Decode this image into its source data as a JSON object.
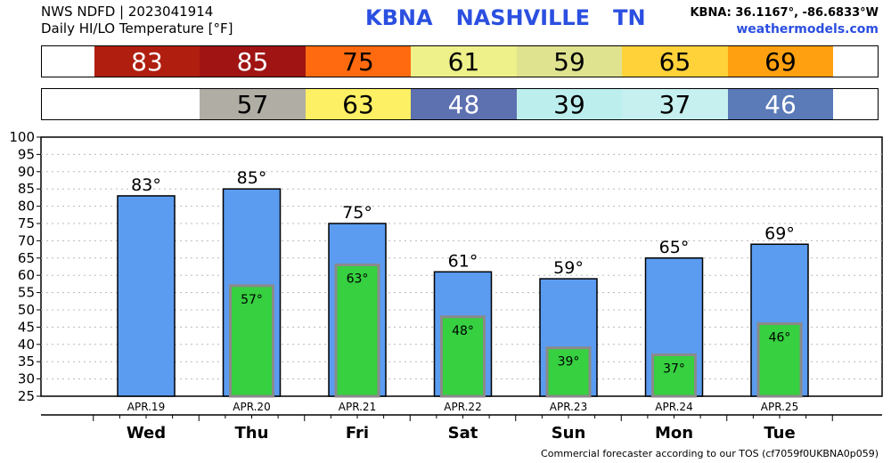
{
  "header": {
    "source": "NWS NDFD | 2023041914",
    "product": "Daily HI/LO Temperature [°F]",
    "station": "KBNA",
    "city": "NASHVILLE",
    "state": "TN",
    "coords": "KBNA: 36.1167°, -86.6833°W",
    "site": "weathermodels.com"
  },
  "strips": {
    "hi": [
      {
        "value": "83",
        "color": "#b01e10",
        "text_color": "#ffffff"
      },
      {
        "value": "85",
        "color": "#a01414",
        "text_color": "#ffffff"
      },
      {
        "value": "75",
        "color": "#ff6a10",
        "text_color": "#000000"
      },
      {
        "value": "61",
        "color": "#eef08a",
        "text_color": "#000000"
      },
      {
        "value": "59",
        "color": "#dfe28e",
        "text_color": "#000000"
      },
      {
        "value": "65",
        "color": "#ffd23a",
        "text_color": "#000000"
      },
      {
        "value": "69",
        "color": "#ffa010",
        "text_color": "#000000"
      }
    ],
    "lo": [
      {
        "value": "",
        "color": "#ffffff",
        "text_color": "#000000"
      },
      {
        "value": "57",
        "color": "#b0aea4",
        "text_color": "#000000"
      },
      {
        "value": "63",
        "color": "#fef064",
        "text_color": "#000000"
      },
      {
        "value": "48",
        "color": "#5d70b0",
        "text_color": "#ffffff"
      },
      {
        "value": "39",
        "color": "#bdeeee",
        "text_color": "#000000"
      },
      {
        "value": "37",
        "color": "#c6f0f0",
        "text_color": "#000000"
      },
      {
        "value": "46",
        "color": "#5a7ab8",
        "text_color": "#ffffff"
      }
    ]
  },
  "chart_data": {
    "type": "bar",
    "categories": [
      "Wed",
      "Thu",
      "Fri",
      "Sat",
      "Sun",
      "Mon",
      "Tue"
    ],
    "dates": [
      "APR.19",
      "APR.20",
      "APR.21",
      "APR.22",
      "APR.23",
      "APR.24",
      "APR.25"
    ],
    "series": [
      {
        "values": [
          83,
          85,
          75,
          61,
          59,
          65,
          69
        ],
        "labels": [
          "83°",
          "85°",
          "75°",
          "61°",
          "59°",
          "65°",
          "69°"
        ],
        "color": "#5b9cf0"
      },
      {
        "values": [
          null,
          57,
          63,
          48,
          39,
          37,
          46
        ],
        "labels": [
          "",
          "57°",
          "63°",
          "48°",
          "39°",
          "37°",
          "46°"
        ],
        "color": "#36d040"
      }
    ],
    "ylim": [
      25,
      100
    ],
    "yticks": [
      25,
      30,
      35,
      40,
      45,
      50,
      55,
      60,
      65,
      70,
      75,
      80,
      85,
      90,
      95,
      100
    ],
    "grid": true
  },
  "footer": "Commercial forecaster according to our TOS (cf7059f0UKBNA0p059)"
}
